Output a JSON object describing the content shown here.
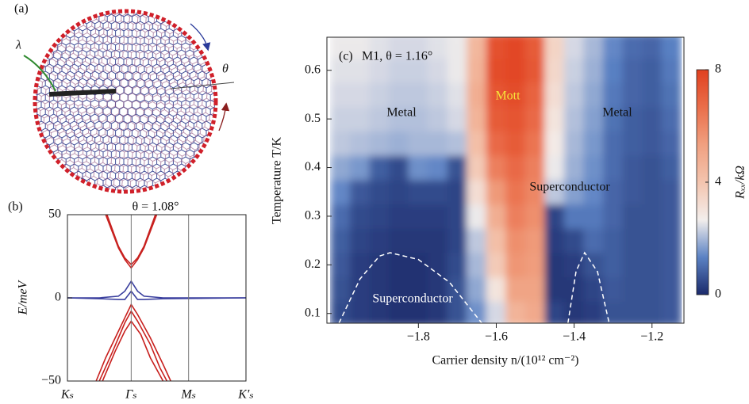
{
  "panel_a": {
    "label": "(a)",
    "lambda": "λ",
    "theta": "θ"
  },
  "chart_data": [
    {
      "type": "line",
      "panel": "(b)",
      "title": "θ = 1.08°",
      "y_label": "E/meV",
      "xlim": [
        0,
        2.8
      ],
      "xticks": [
        {
          "value": 0,
          "label": "Kₛ"
        },
        {
          "value": 1,
          "label": "Γₛ"
        },
        {
          "value": 1.9,
          "label": "Mₛ"
        },
        {
          "value": 2.8,
          "label": "K′ₛ"
        }
      ],
      "ylim": [
        -50,
        50
      ],
      "yticks": [
        {
          "value": -50,
          "label": "−50"
        },
        0,
        50
      ],
      "grid": true,
      "series": [
        {
          "color": "#c8201e",
          "x": [
            0.62,
            0.8,
            0.9,
            1,
            1.1,
            1.2,
            1.38
          ],
          "values": [
            50,
            31,
            24,
            20,
            24,
            31,
            50
          ]
        },
        {
          "color": "#c8201e",
          "x": [
            0.6,
            0.8,
            0.9,
            1,
            1.1,
            1.2,
            1.4
          ],
          "values": [
            50,
            30,
            23,
            18,
            23,
            30,
            50
          ]
        },
        {
          "color": "#c8201e",
          "x": [
            0.45,
            0.6,
            0.8,
            0.9,
            1,
            1.1,
            1.3,
            1.5,
            1.62
          ],
          "values": [
            -50,
            -36,
            -20,
            -12,
            -4,
            -10,
            -24,
            -40,
            -50
          ]
        },
        {
          "color": "#c8201e",
          "x": [
            0.5,
            0.7,
            0.9,
            1,
            1.1,
            1.3,
            1.45,
            1.56
          ],
          "values": [
            -50,
            -33,
            -15,
            -8,
            -14,
            -28,
            -42,
            -50
          ]
        },
        {
          "color": "#c8201e",
          "x": [
            0.55,
            0.75,
            0.9,
            1,
            1.15,
            1.3,
            1.5
          ],
          "values": [
            -50,
            -32,
            -20,
            -14,
            -22,
            -36,
            -50
          ]
        },
        {
          "color": "#3a3f9e",
          "x": [
            0,
            0.5,
            0.8,
            0.9,
            1,
            1.1,
            1.2,
            1.5,
            2.8
          ],
          "values": [
            0,
            0,
            1,
            4,
            10,
            4,
            1,
            0,
            0
          ]
        },
        {
          "color": "#3a3f9e",
          "x": [
            0,
            0.5,
            0.8,
            0.9,
            1,
            1.1,
            1.2,
            1.5,
            2.8
          ],
          "values": [
            0,
            -0.5,
            -1,
            -1,
            4,
            -1,
            -1,
            -0.5,
            0
          ]
        }
      ]
    },
    {
      "type": "heatmap",
      "panel": "(c)",
      "title": "M1, θ = 1.16°",
      "x_label": "Carrier density n/(10¹² cm⁻²)",
      "y_label": "Temperature T/K",
      "annotations": {
        "mott": "Mott",
        "metal_left": "Metal",
        "metal_right": "Metal",
        "sc_right": "Superconductor",
        "sc_left": "Superconductor"
      },
      "xlim": [
        -2.035,
        -1.118
      ],
      "xticks": [
        {
          "value": -1.8,
          "label": "−1.8"
        },
        {
          "value": -1.6,
          "label": "−1.6"
        },
        {
          "value": -1.4,
          "label": "−1.4"
        },
        {
          "value": -1.2,
          "label": "−1.2"
        }
      ],
      "ylim": [
        0.08,
        0.668
      ],
      "yticks": [
        0.1,
        0.2,
        0.3,
        0.4,
        0.5,
        0.6
      ],
      "x": [
        -2.0,
        -1.95,
        -1.9,
        -1.85,
        -1.8,
        -1.75,
        -1.7,
        -1.65,
        -1.6,
        -1.55,
        -1.5,
        -1.45,
        -1.4,
        -1.35,
        -1.3,
        -1.25,
        -1.2,
        -1.15
      ],
      "y": [
        0.1,
        0.15,
        0.2,
        0.25,
        0.3,
        0.35,
        0.4,
        0.45,
        0.5,
        0.55,
        0.6,
        0.65
      ],
      "z": [
        [
          0.5,
          0.3,
          0.2,
          0.1,
          0.1,
          0.2,
          0.6,
          1.5,
          2.4,
          4.6,
          5.0,
          0.4,
          0.2,
          0.3,
          0.6,
          0.6,
          0.6,
          0.7
        ],
        [
          0.6,
          0.3,
          0.2,
          0.1,
          0.1,
          0.2,
          0.6,
          1.8,
          3.0,
          5.2,
          5.2,
          0.2,
          0.2,
          0.4,
          0.7,
          0.6,
          0.6,
          0.7
        ],
        [
          0.7,
          0.3,
          0.2,
          0.1,
          0.1,
          0.2,
          0.5,
          2.0,
          3.8,
          5.6,
          5.4,
          0.2,
          0.3,
          0.6,
          0.8,
          0.6,
          0.6,
          0.7
        ],
        [
          0.8,
          0.4,
          0.3,
          0.2,
          0.2,
          0.2,
          0.4,
          2.2,
          4.2,
          5.8,
          5.5,
          0.3,
          0.5,
          1.0,
          0.8,
          0.6,
          0.6,
          0.7
        ],
        [
          1.0,
          0.5,
          0.4,
          0.3,
          0.3,
          0.3,
          0.4,
          2.6,
          4.8,
          6.2,
          5.8,
          0.4,
          1.2,
          1.2,
          0.9,
          0.6,
          0.6,
          0.7
        ],
        [
          1.4,
          0.7,
          0.5,
          0.4,
          0.5,
          0.5,
          0.4,
          3.2,
          5.5,
          6.5,
          6.0,
          2.2,
          1.7,
          1.4,
          0.9,
          0.7,
          0.6,
          0.7
        ],
        [
          1.8,
          1.6,
          0.8,
          0.5,
          1.5,
          1.4,
          0.6,
          3.8,
          6.2,
          6.8,
          6.2,
          2.6,
          1.9,
          1.5,
          1.0,
          0.7,
          0.6,
          0.8
        ],
        [
          2.2,
          2.1,
          2.0,
          1.9,
          2.0,
          2.0,
          2.1,
          4.2,
          6.8,
          7.2,
          6.5,
          2.8,
          2.0,
          1.6,
          1.0,
          0.8,
          0.7,
          0.9
        ],
        [
          2.3,
          2.3,
          2.2,
          2.1,
          2.1,
          2.2,
          2.4,
          4.6,
          7.2,
          7.4,
          6.8,
          3.0,
          2.1,
          1.7,
          1.1,
          0.8,
          0.7,
          1.0
        ],
        [
          2.4,
          2.4,
          2.3,
          2.2,
          2.2,
          2.3,
          2.5,
          4.8,
          7.4,
          7.6,
          7.0,
          3.2,
          2.2,
          1.8,
          1.2,
          0.9,
          0.8,
          1.1
        ],
        [
          2.5,
          2.5,
          2.4,
          2.3,
          2.3,
          2.4,
          2.6,
          4.6,
          7.6,
          7.8,
          7.3,
          3.4,
          2.3,
          1.9,
          1.3,
          0.9,
          0.8,
          1.2
        ],
        [
          2.6,
          2.6,
          2.5,
          2.4,
          2.4,
          2.5,
          2.6,
          4.5,
          7.5,
          7.8,
          7.2,
          3.5,
          2.4,
          2.0,
          1.4,
          1.0,
          0.9,
          1.3
        ]
      ],
      "colorbar": {
        "label": "Rₓₓ/kΩ",
        "lim": [
          0,
          8
        ],
        "ticks": [
          0,
          4,
          8
        ],
        "colors": [
          "#1b2a6b",
          "#5b82c4",
          "#f3eeec",
          "#f3c4ae",
          "#f0a080",
          "#ea6e4a",
          "#e0401f"
        ]
      },
      "guides": [
        {
          "x": [
            -2.004,
            -1.95,
            -1.9,
            -1.873,
            -1.8,
            -1.72,
            -1.637
          ],
          "values": [
            0.08,
            0.171,
            0.218,
            0.225,
            0.211,
            0.164,
            0.08
          ]
        },
        {
          "x": [
            -1.416,
            -1.395,
            -1.373,
            -1.34,
            -1.31
          ],
          "values": [
            0.08,
            0.187,
            0.225,
            0.186,
            0.08
          ]
        }
      ]
    }
  ]
}
